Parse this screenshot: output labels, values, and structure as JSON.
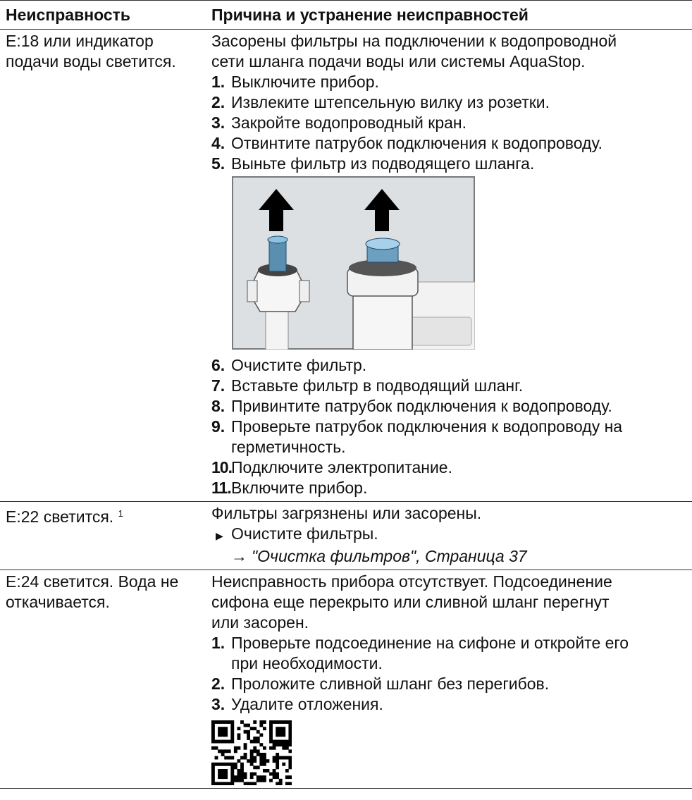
{
  "table": {
    "header": [
      "Неисправность",
      "Причина и устранение неисправностей"
    ],
    "rows": [
      {
        "fault": [
          "E:18 или индикатор",
          "подачи воды светится."
        ],
        "description": [
          "Засорены фильтры на подключении к водопроводной",
          "сети шланга подачи воды или системы AquaStop."
        ],
        "steps": [
          {
            "number": "1.",
            "lines": [
              "Выключите прибор."
            ]
          },
          {
            "number": "2.",
            "lines": [
              "Извлеките штепсельную вилку из розетки."
            ]
          },
          {
            "number": "3.",
            "lines": [
              "Закройте водопроводный кран."
            ]
          },
          {
            "number": "4.",
            "lines": [
              "Отвинтите патрубок подключения к водопроводу."
            ]
          },
          {
            "number": "5.",
            "lines": [
              "Выньте фильтр из подводящего шланга."
            ]
          }
        ],
        "steps_after_figure": [
          {
            "number": "6.",
            "lines": [
              "Очистите фильтр."
            ]
          },
          {
            "number": "7.",
            "lines": [
              "Вставьте фильтр в подводящий шланг."
            ]
          },
          {
            "number": "8.",
            "lines": [
              "Привинтите патрубок подключения к водопроводу."
            ]
          },
          {
            "number": "9.",
            "lines": [
              "Проверьте патрубок подключения к водопроводу на",
              "герметичность."
            ]
          },
          {
            "number": "10.",
            "lines": [
              "Подключите электропитание."
            ]
          },
          {
            "number": "11.",
            "lines": [
              "Включите прибор."
            ]
          }
        ]
      },
      {
        "fault": [
          "E:22 светится."
        ],
        "footnote": "1",
        "description": [
          "Фильтры загрязнены или засорены."
        ],
        "action": "Очистите фильтры.",
        "link": {
          "arrow": "→",
          "text": "\"Очистка фильтров\", Страница 37"
        }
      },
      {
        "fault": [
          "E:24 светится. Вода не",
          "откачивается."
        ],
        "description": [
          "Неисправность прибора отсутствует. Подсоединение",
          "сифона еще перекрыто или сливной шланг перегнут",
          "или засорен."
        ],
        "steps": [
          {
            "number": "1.",
            "lines": [
              "Проверьте подсоединение на сифоне и откройте его",
              "при необходимости."
            ]
          },
          {
            "number": "2.",
            "lines": [
              "Проложите сливной шланг без перегибов."
            ]
          },
          {
            "number": "3.",
            "lines": [
              "Удалите отложения."
            ]
          }
        ],
        "qr": true
      }
    ]
  }
}
